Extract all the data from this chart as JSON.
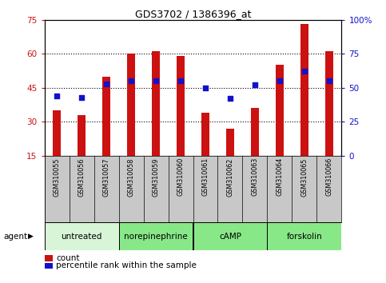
{
  "title": "GDS3702 / 1386396_at",
  "samples": [
    "GSM310055",
    "GSM310056",
    "GSM310057",
    "GSM310058",
    "GSM310059",
    "GSM310060",
    "GSM310061",
    "GSM310062",
    "GSM310063",
    "GSM310064",
    "GSM310065",
    "GSM310066"
  ],
  "counts": [
    35,
    33,
    50,
    60,
    61,
    59,
    34,
    27,
    36,
    55,
    73,
    61
  ],
  "percentile_ranks_pct": [
    44,
    43,
    53,
    55,
    55,
    55,
    50,
    42,
    52,
    55,
    62,
    55
  ],
  "ylim_left": [
    15,
    75
  ],
  "ylim_right": [
    0,
    100
  ],
  "yticks_left": [
    15,
    30,
    45,
    60,
    75
  ],
  "yticks_right": [
    0,
    25,
    50,
    75,
    100
  ],
  "ytick_labels_left": [
    "15",
    "30",
    "45",
    "60",
    "75"
  ],
  "ytick_labels_right": [
    "0",
    "25",
    "50",
    "75",
    "100%"
  ],
  "bar_color": "#cc1111",
  "dot_color": "#1111cc",
  "plot_bg": "#ffffff",
  "label_bg": "#c8c8c8",
  "agent_groups": [
    {
      "label": "untreated",
      "start": 0,
      "end": 3,
      "color": "#d8f5d8"
    },
    {
      "label": "norepinephrine",
      "start": 3,
      "end": 6,
      "color": "#88e888"
    },
    {
      "label": "cAMP",
      "start": 6,
      "end": 9,
      "color": "#88e888"
    },
    {
      "label": "forskolin",
      "start": 9,
      "end": 12,
      "color": "#88e888"
    }
  ],
  "legend_count_label": "count",
  "legend_pct_label": "percentile rank within the sample",
  "bar_width": 0.35,
  "dot_size": 25,
  "grid_dotted_at": [
    30,
    45,
    60
  ],
  "title_fontsize": 9,
  "tick_fontsize": 7.5,
  "sample_fontsize": 5.8,
  "agent_fontsize": 7.5,
  "legend_fontsize": 7.5
}
